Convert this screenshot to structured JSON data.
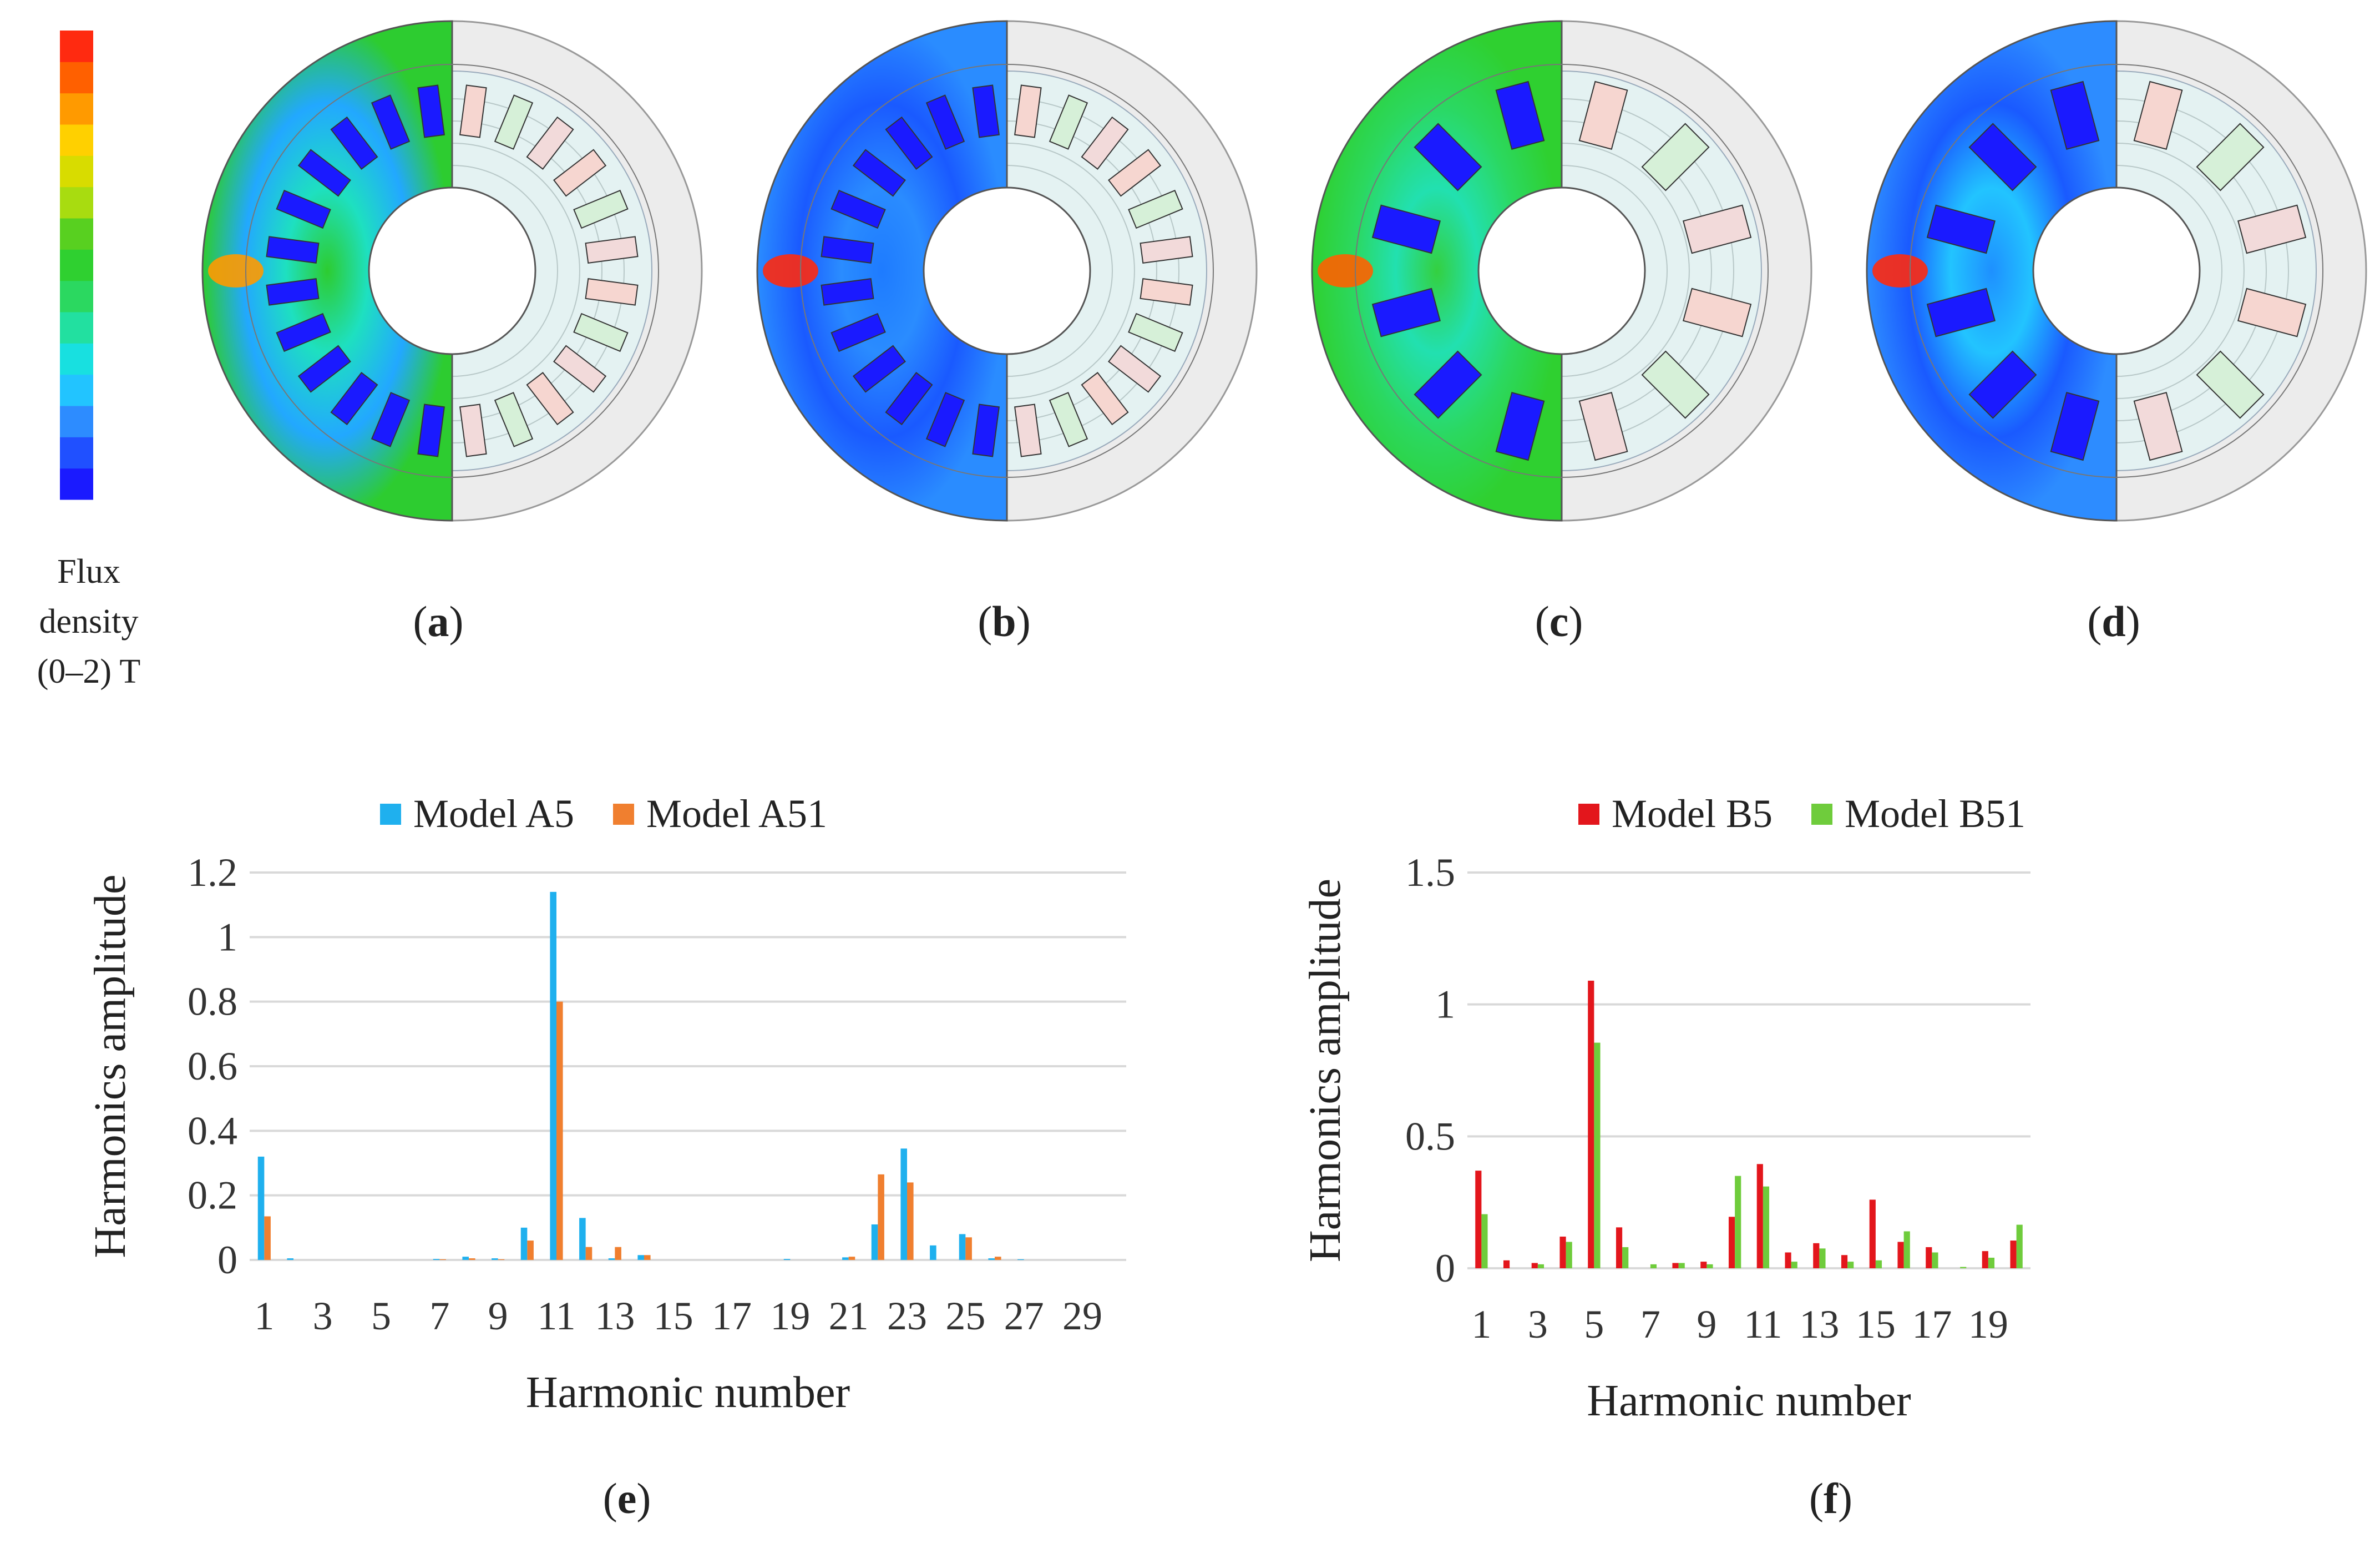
{
  "colorbar": {
    "label_line1": "Flux",
    "label_line2": "density",
    "label_line3": "(0–2) T",
    "colors": [
      "#1a1aff",
      "#2050ff",
      "#2d8cff",
      "#22c4ff",
      "#18e0e0",
      "#22e0a0",
      "#2bd860",
      "#2fd030",
      "#58d020",
      "#a8dc10",
      "#d8dc00",
      "#ffd000",
      "#ff9a00",
      "#ff6000",
      "#ff2a10"
    ]
  },
  "panels": {
    "a": {
      "letter": "a"
    },
    "b": {
      "letter": "b"
    },
    "c": {
      "letter": "c"
    },
    "d": {
      "letter": "d"
    },
    "e": {
      "letter": "e"
    },
    "f": {
      "letter": "f"
    }
  },
  "chart_data": [
    {
      "panel": "e",
      "type": "bar",
      "title": "",
      "xlabel": "Harmonic number",
      "ylabel": "Harmonics amplitude",
      "ylim": [
        0,
        1.2
      ],
      "yticks": [
        "0",
        "0.2",
        "0.4",
        "0.6",
        "0.8",
        "1",
        "1.2"
      ],
      "ytick_values": [
        0,
        0.2,
        0.4,
        0.6,
        0.8,
        1.0,
        1.2
      ],
      "categories": [
        1,
        2,
        3,
        4,
        5,
        6,
        7,
        8,
        9,
        10,
        11,
        12,
        13,
        14,
        15,
        16,
        17,
        18,
        19,
        20,
        21,
        22,
        23,
        24,
        25,
        26,
        27,
        28,
        29,
        30
      ],
      "xtick_labels": [
        "1",
        "3",
        "5",
        "7",
        "9",
        "11",
        "13",
        "15",
        "17",
        "19",
        "21",
        "23",
        "25",
        "27",
        "29"
      ],
      "legend_position": "top",
      "series": [
        {
          "name": "Model A5",
          "color": "#1fb0ee",
          "values": [
            0.32,
            0.005,
            0,
            0,
            0,
            0,
            0.003,
            0.01,
            0.005,
            0.1,
            1.14,
            0.13,
            0.005,
            0.015,
            0,
            0,
            0,
            0,
            0.003,
            0,
            0.008,
            0.11,
            0.345,
            0.045,
            0.08,
            0.005,
            0.002,
            0,
            0,
            0
          ]
        },
        {
          "name": "Model A51",
          "color": "#f07f2f",
          "values": [
            0.135,
            0,
            0,
            0,
            0,
            0,
            0.002,
            0.005,
            0.002,
            0.06,
            0.8,
            0.04,
            0.04,
            0.015,
            0,
            0,
            0,
            0,
            0,
            0,
            0.01,
            0.265,
            0.24,
            0,
            0.07,
            0.01,
            0,
            0,
            0,
            0
          ]
        }
      ]
    },
    {
      "panel": "f",
      "type": "bar",
      "title": "",
      "xlabel": "Harmonic number",
      "ylabel": "Harmonics amplitude",
      "ylim": [
        0,
        1.5
      ],
      "yticks": [
        "0",
        "0.5",
        "1",
        "1.5"
      ],
      "ytick_values": [
        0,
        0.5,
        1.0,
        1.5
      ],
      "categories": [
        1,
        2,
        3,
        4,
        5,
        6,
        7,
        8,
        9,
        10,
        11,
        12,
        13,
        14,
        15,
        16,
        17,
        18,
        19,
        20
      ],
      "xtick_labels": [
        "1",
        "3",
        "5",
        "7",
        "9",
        "11",
        "13",
        "15",
        "17",
        "19"
      ],
      "legend_position": "top",
      "series": [
        {
          "name": "Model B5",
          "color": "#e3161c",
          "values": [
            0.37,
            0.03,
            0.02,
            0.12,
            1.09,
            0.155,
            0,
            0.02,
            0.025,
            0.195,
            0.395,
            0.06,
            0.095,
            0.05,
            0.26,
            0.1,
            0.08,
            0,
            0.065,
            0.105
          ]
        },
        {
          "name": "Model B51",
          "color": "#6fcc3c",
          "values": [
            0.205,
            0,
            0.015,
            0.1,
            0.855,
            0.08,
            0.015,
            0.02,
            0.015,
            0.35,
            0.31,
            0.025,
            0.075,
            0.025,
            0.03,
            0.14,
            0.06,
            0.005,
            0.04,
            0.165
          ]
        }
      ]
    }
  ]
}
